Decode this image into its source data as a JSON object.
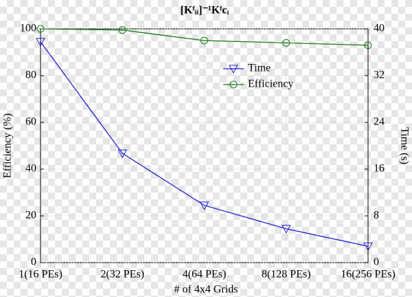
{
  "chart_data": {
    "type": "line",
    "title": "[Kᶠᵢᵢ]⁻¹Kᶠcᵢ",
    "x_label": "# of 4x4 Grids",
    "y_label": "Efficiency (%)",
    "y2_label": "Time (s)",
    "categories": [
      "1(16 PEs)",
      "2(32 PEs)",
      "4(64 PEs)",
      "8(128 PEs)",
      "16(256 PEs)"
    ],
    "series": [
      {
        "name": "Time",
        "color": "#1f1fd0",
        "marker": "triangle-down",
        "axis": "y2",
        "values": [
          37.8,
          18.7,
          9.8,
          5.8,
          2.8
        ]
      },
      {
        "name": "Efficiency",
        "color": "#1a7a1a",
        "marker": "circle",
        "axis": "y",
        "values": [
          100,
          99.5,
          95,
          94,
          93
        ]
      }
    ],
    "ylim": [
      0,
      100
    ],
    "yticks": [
      0,
      20,
      40,
      60,
      80,
      100
    ],
    "y2lim": [
      0,
      40
    ],
    "y2ticks": [
      0,
      8,
      16,
      24,
      32,
      40
    ],
    "grid": true,
    "legend": "upper right"
  }
}
